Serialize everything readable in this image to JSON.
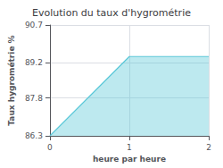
{
  "chart_data": {
    "type": "area",
    "title": "Evolution du taux d'hygrométrie",
    "xlabel": "heure par heure",
    "ylabel": "Taux hygrométrie %",
    "x": [
      0,
      1,
      2
    ],
    "values": [
      86.3,
      89.45,
      89.45
    ],
    "color": "#5bc8d8",
    "xlim": [
      0,
      2
    ],
    "ylim": [
      86.3,
      90.7
    ],
    "xticks": [
      0,
      1,
      2
    ],
    "yticks": [
      86.3,
      87.8,
      89.2,
      90.7
    ],
    "grid": true
  }
}
